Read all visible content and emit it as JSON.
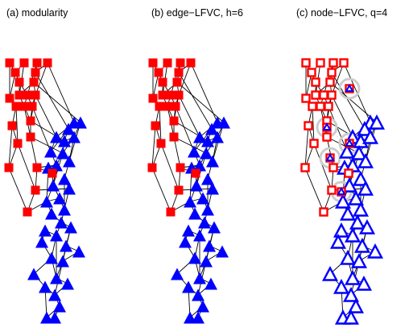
{
  "panels": [
    {
      "title": "(a) modularity",
      "style": "filled"
    },
    {
      "title": "(b) edge−LFVC, h=6",
      "style": "filled"
    },
    {
      "title": "(c) node−LFVC, q=4",
      "style": "hollow"
    }
  ],
  "colors": {
    "community_a": "#ff0000",
    "community_b": "#0000ff",
    "edge": "#000000",
    "highlight_ring": "#cccccc"
  },
  "legend": {
    "community_a_shape": "square",
    "community_b_shape": "triangle"
  }
}
